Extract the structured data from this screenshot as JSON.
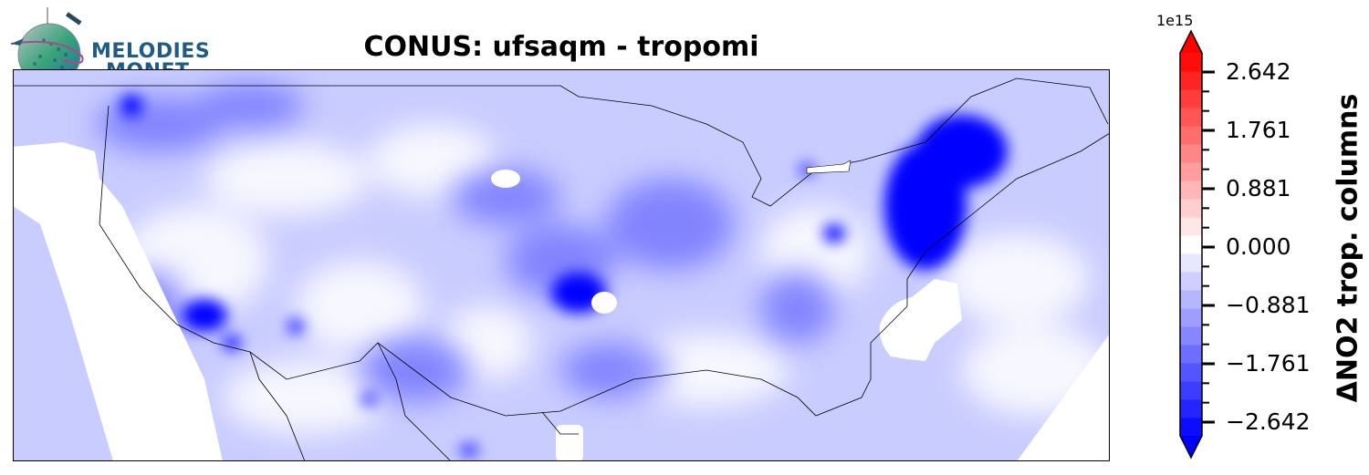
{
  "logo": {
    "line1": "MELODIES",
    "line2": "MONET"
  },
  "title": "CONUS: ufsaqm - tropomi",
  "colorbar": {
    "multiplier": "1e15",
    "label": "ΔNO2 trop. columns",
    "ticks": [
      "2.642",
      "1.761",
      "0.881",
      "0.000",
      "−0.881",
      "−1.761",
      "−2.642"
    ],
    "min_color": "#0000ff",
    "mid_color": "#ffffff",
    "max_color": "#ff0000"
  },
  "map": {
    "region": "CONUS",
    "background_color": "#ffffff"
  }
}
